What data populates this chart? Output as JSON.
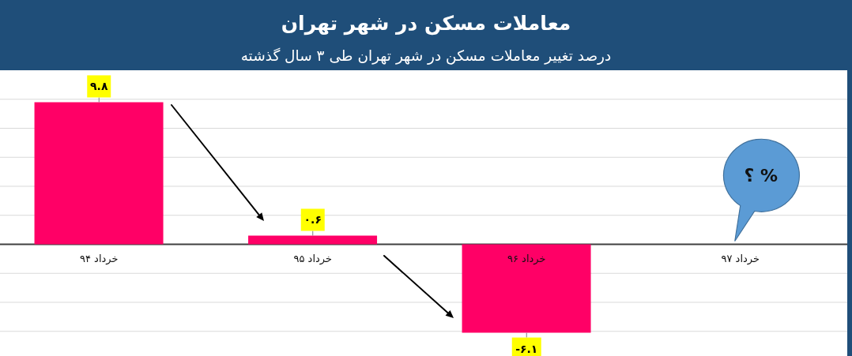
{
  "chart_data": {
    "type": "bar",
    "title": "معاملات مسکن در شهر تهران",
    "subtitle": "درصد تغییر معاملات مسکن در شهر تهران طی ۳ سال گذشته",
    "categories": [
      "خرداد ۹۴",
      "خرداد ۹۵",
      "خرداد ۹۶",
      "خرداد ۹۷"
    ],
    "values": [
      9.8,
      0.6,
      -6.1,
      null
    ],
    "color": "#ff0066",
    "value_labels": [
      "۹.۸",
      "۰.۶",
      "-۶.۱",
      null
    ],
    "ylim": [
      -7.7,
      12
    ],
    "yticks": [
      {
        "value": -6,
        "label": null
      },
      {
        "value": -4,
        "label": null
      },
      {
        "value": -2,
        "label": null
      },
      {
        "value": 0,
        "label": null
      },
      {
        "value": 2,
        "label": null
      },
      {
        "value": 4,
        "label": null
      },
      {
        "value": 6,
        "label": null
      },
      {
        "value": 8,
        "label": null
      },
      {
        "value": 10,
        "label": null
      }
    ],
    "tick_labels": "x",
    "grid": "y",
    "annotations": [
      "% ؟"
    ]
  }
}
